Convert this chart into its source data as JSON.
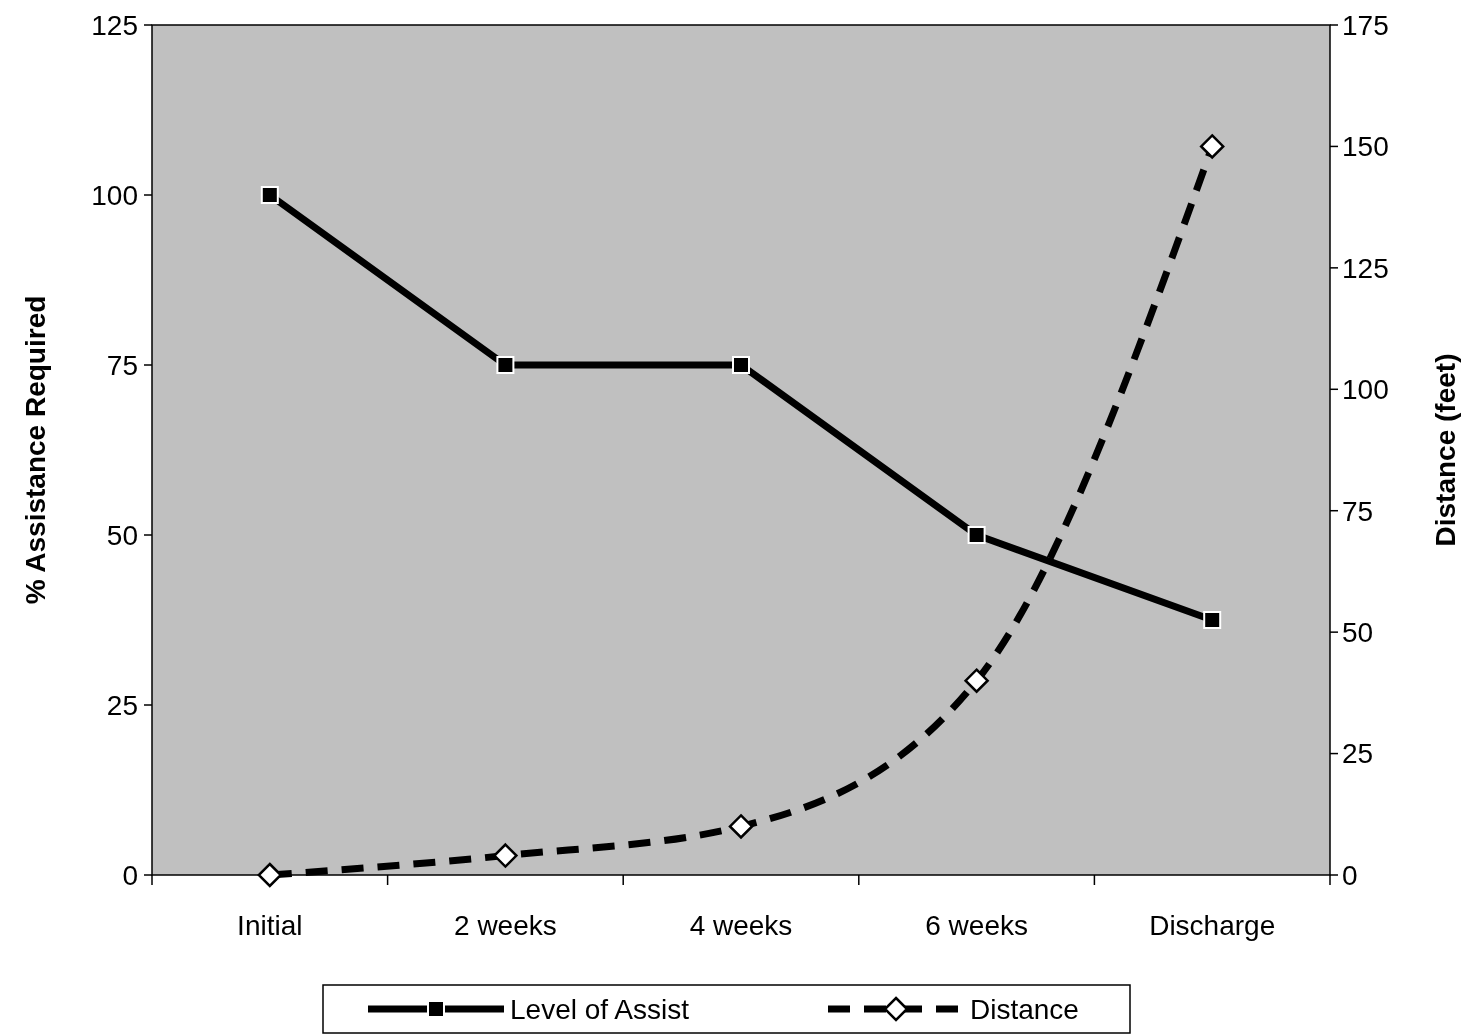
{
  "chart_data": {
    "type": "line",
    "categories": [
      "Initial",
      "2 weeks",
      "4 weeks",
      "6 weeks",
      "Discharge"
    ],
    "ylabel": "% Assistance Required",
    "y2label": "Distance (feet)",
    "ylim": [
      0,
      125
    ],
    "yticks": [
      0,
      25,
      50,
      75,
      100,
      125
    ],
    "y2lim": [
      0,
      175
    ],
    "y2ticks": [
      0,
      25,
      50,
      75,
      100,
      125,
      150,
      175
    ],
    "grid": false,
    "legend": "bottom",
    "series": [
      {
        "name": "Level of Assist",
        "color": "#000000",
        "values": [
          100,
          75,
          75,
          50,
          37.5
        ],
        "marker": "square",
        "line_style": "solid"
      },
      {
        "name": "Distance",
        "color": "#000000",
        "values": [
          0,
          4,
          10,
          40,
          150
        ],
        "marker": "diamond",
        "line_style": "dashed",
        "axis": "y2"
      }
    ]
  }
}
